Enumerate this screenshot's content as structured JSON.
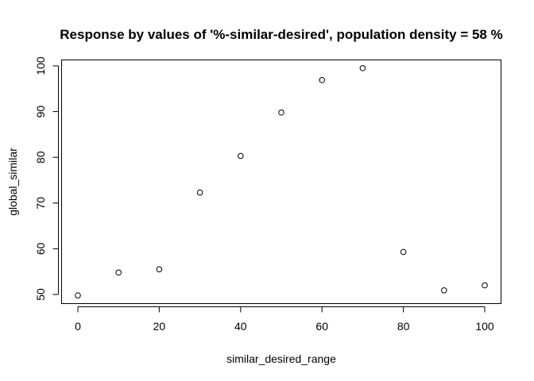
{
  "chart_data": {
    "type": "scatter",
    "title": "Response by values of '%-similar-desired', population density = 58 %",
    "xlabel": "similar_desired_range",
    "ylabel": "global_similar",
    "x": [
      0,
      10,
      20,
      30,
      40,
      50,
      60,
      70,
      80,
      90,
      100
    ],
    "y": [
      49.8,
      54.8,
      55.5,
      72.3,
      80.3,
      89.8,
      96.9,
      99.5,
      59.3,
      50.9,
      52.0
    ],
    "xlim": [
      -4,
      104
    ],
    "ylim": [
      48.0,
      101.3
    ],
    "xticks": [
      0,
      20,
      40,
      60,
      80,
      100
    ],
    "yticks": [
      50,
      60,
      70,
      80,
      90,
      100
    ],
    "grid": false,
    "marker": "open-circle"
  }
}
